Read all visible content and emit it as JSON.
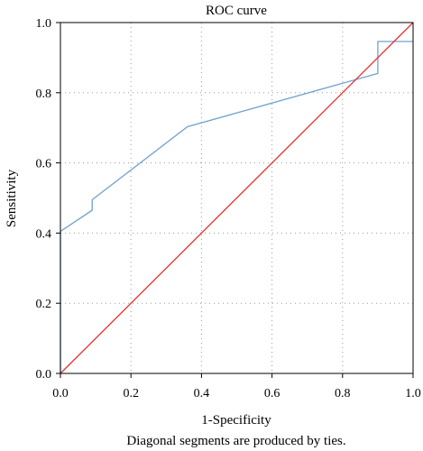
{
  "chart_data": {
    "type": "line",
    "title": "ROC curve",
    "xlabel": "1-Specificity",
    "ylabel": "Sensitivity",
    "footnote": "Diagonal segments are produced by ties.",
    "xlim": [
      0.0,
      1.0
    ],
    "ylim": [
      0.0,
      1.0
    ],
    "xticks": [
      "0.0",
      "0.2",
      "0.4",
      "0.6",
      "0.8",
      "1.0"
    ],
    "yticks": [
      "0.0",
      "0.2",
      "0.4",
      "0.6",
      "0.8",
      "1.0"
    ],
    "xtick_values": [
      0.0,
      0.2,
      0.4,
      0.6,
      0.8,
      1.0
    ],
    "ytick_values": [
      0.0,
      0.2,
      0.4,
      0.6,
      0.8,
      1.0
    ],
    "grid": "dotted",
    "series": [
      {
        "color": "#6fa0d0",
        "x": [
          0.0,
          0.0,
          0.09,
          0.09,
          0.36,
          0.9,
          0.9,
          1.0
        ],
        "y": [
          0.0,
          0.405,
          0.465,
          0.495,
          0.703,
          0.855,
          0.946,
          0.946
        ]
      },
      {
        "color": "#e8312f",
        "x": [
          0.0,
          1.0
        ],
        "y": [
          0.0,
          1.0
        ]
      }
    ]
  }
}
